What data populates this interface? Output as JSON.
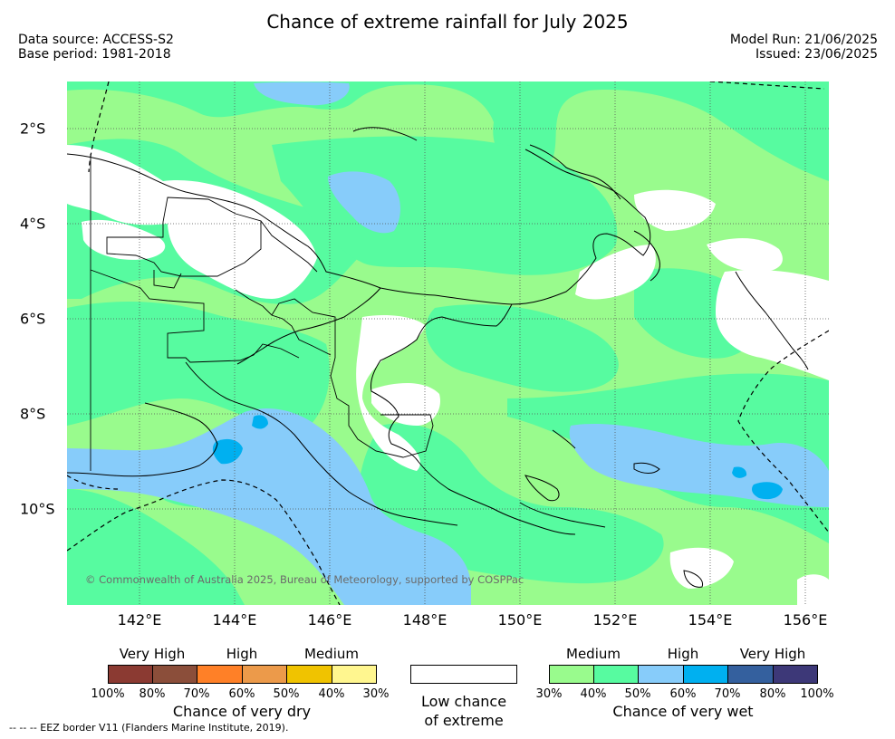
{
  "title": "Chance of extreme rainfall for July 2025",
  "data_source": "Data source: ACCESS-S2",
  "base_period": "Base period: 1981-2018",
  "model_run": "Model Run: 21/06/2025",
  "issued": "Issued: 23/06/2025",
  "copyright": "© Commonwealth of Australia 2025, Bureau of Meteorology, supported by COSPPac",
  "eez_note": "-- -- -- EEZ border V11 (Flanders Marine Institute, 2019).",
  "lon_ticks": [
    "142°E",
    "144°E",
    "146°E",
    "148°E",
    "150°E",
    "152°E",
    "154°E",
    "156°E"
  ],
  "lat_ticks": [
    "2°S",
    "4°S",
    "6°S",
    "8°S",
    "10°S"
  ],
  "map_extent": {
    "lon_min": 141.0,
    "lon_max": 156.0,
    "lat_min": -11.0,
    "lat_max": -1.0
  },
  "legend": {
    "dry": {
      "title": "Chance of very dry",
      "levels": [
        "Very High",
        "High",
        "Medium"
      ],
      "colors": [
        "#8b3a32",
        "#8b4e3a",
        "#ff8027",
        "#ec9a4a",
        "#f0c300",
        "#fff68f"
      ],
      "percents": [
        "100%",
        "80%",
        "70%",
        "60%",
        "50%",
        "40%",
        "30%"
      ]
    },
    "low": {
      "title_line1": "Low chance",
      "title_line2": "of extreme",
      "color": "#ffffff"
    },
    "wet": {
      "title": "Chance of very wet",
      "levels": [
        "Medium",
        "High",
        "Very High"
      ],
      "colors": [
        "#99fb8d",
        "#57fba0",
        "#87ccfa",
        "#00b0f0",
        "#34609e",
        "#3d3878"
      ],
      "percents": [
        "30%",
        "40%",
        "50%",
        "60%",
        "70%",
        "80%",
        "100%"
      ]
    }
  }
}
